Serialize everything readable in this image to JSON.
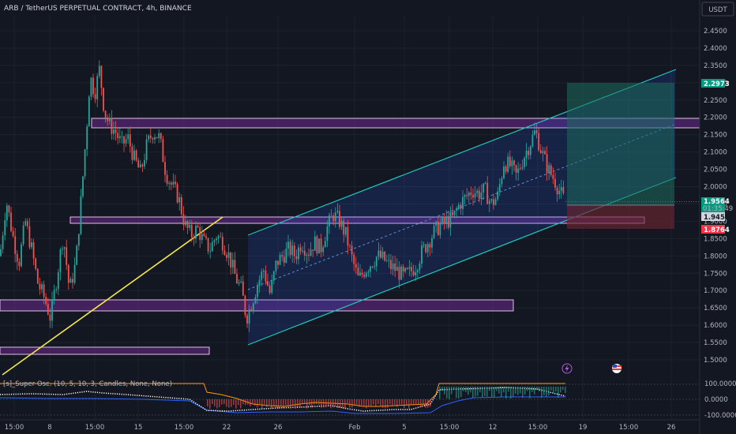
{
  "header": {
    "title": "ARB / TetherUS PERPETUAL CONTRACT, 4h, BINANCE",
    "currency": "USDT"
  },
  "price_axis": {
    "ticks": [
      "2.4500",
      "2.4000",
      "2.3500",
      "2.3000",
      "2.2500",
      "2.2000",
      "2.1500",
      "2.1000",
      "2.0500",
      "2.0000",
      "1.9500",
      "1.9000",
      "1.8500",
      "1.8000",
      "1.7500",
      "1.7000",
      "1.6500",
      "1.6000",
      "1.5500",
      "1.5000"
    ],
    "target_price": "2.2973",
    "last_price": "1.9564",
    "countdown": "01:35:49",
    "entry_price": "1.9453",
    "stop_price": "1.8764"
  },
  "time_axis": {
    "ticks": [
      "15:00",
      "8",
      "15:00",
      "15",
      "15:00",
      "22",
      "26",
      "Feb",
      "5",
      "15:00",
      "12",
      "15:00",
      "19",
      "15:00",
      "26"
    ]
  },
  "oscillator": {
    "label": "[s]_Super Osc. (10, 5, 10, 3, Candles, None, None)",
    "ticks": [
      "100.0000",
      "0.0000",
      "-100.0000"
    ]
  },
  "events": {
    "lightning_icon": "lightning-icon",
    "flag_icon": "us-flag-icon"
  },
  "colors": {
    "background": "#131722",
    "up": "#26a69a",
    "down": "#ef5350",
    "zone_fill": "#6a2a8c",
    "zone_border": "#e1bee7",
    "channel": "#22c7b8",
    "trendline": "#f5e94a",
    "target_fill": "#1e6b5c",
    "stop_fill": "#6b2530"
  },
  "chart_data": {
    "type": "candlestick",
    "symbol": "ARB / TetherUS PERPETUAL CONTRACT",
    "interval": "4h",
    "exchange": "BINANCE",
    "ylim": [
      1.47,
      2.48
    ],
    "close_path": [
      [
        0,
        1.8
      ],
      [
        8,
        1.96
      ],
      [
        16,
        1.86
      ],
      [
        24,
        1.78
      ],
      [
        32,
        1.9
      ],
      [
        40,
        1.82
      ],
      [
        48,
        1.72
      ],
      [
        56,
        1.68
      ],
      [
        64,
        1.62
      ],
      [
        72,
        1.74
      ],
      [
        80,
        1.86
      ],
      [
        88,
        1.7
      ],
      [
        96,
        1.78
      ],
      [
        104,
        2.0
      ],
      [
        110,
        2.18
      ],
      [
        114,
        2.32
      ],
      [
        120,
        2.27
      ],
      [
        126,
        2.34
      ],
      [
        132,
        2.22
      ],
      [
        138,
        2.18
      ],
      [
        146,
        2.16
      ],
      [
        154,
        2.12
      ],
      [
        162,
        2.14
      ],
      [
        170,
        2.08
      ],
      [
        178,
        2.04
      ],
      [
        186,
        2.12
      ],
      [
        194,
        2.16
      ],
      [
        202,
        2.14
      ],
      [
        210,
        2.04
      ],
      [
        218,
        2.0
      ],
      [
        226,
        1.97
      ],
      [
        234,
        1.89
      ],
      [
        242,
        1.86
      ],
      [
        250,
        1.88
      ],
      [
        258,
        1.84
      ],
      [
        266,
        1.82
      ],
      [
        274,
        1.86
      ],
      [
        282,
        1.84
      ],
      [
        290,
        1.8
      ],
      [
        298,
        1.74
      ],
      [
        306,
        1.7
      ],
      [
        312,
        1.62
      ],
      [
        318,
        1.66
      ],
      [
        326,
        1.72
      ],
      [
        334,
        1.76
      ],
      [
        342,
        1.69
      ],
      [
        350,
        1.78
      ],
      [
        358,
        1.8
      ],
      [
        366,
        1.82
      ],
      [
        374,
        1.8
      ],
      [
        382,
        1.84
      ],
      [
        390,
        1.81
      ],
      [
        398,
        1.84
      ],
      [
        406,
        1.82
      ],
      [
        414,
        1.88
      ],
      [
        422,
        1.92
      ],
      [
        430,
        1.9
      ],
      [
        438,
        1.86
      ],
      [
        446,
        1.79
      ],
      [
        454,
        1.73
      ],
      [
        462,
        1.76
      ],
      [
        470,
        1.78
      ],
      [
        478,
        1.8
      ],
      [
        486,
        1.79
      ],
      [
        494,
        1.77
      ],
      [
        502,
        1.76
      ],
      [
        510,
        1.74
      ],
      [
        518,
        1.75
      ],
      [
        526,
        1.77
      ],
      [
        534,
        1.81
      ],
      [
        542,
        1.84
      ],
      [
        550,
        1.87
      ],
      [
        558,
        1.89
      ],
      [
        566,
        1.9
      ],
      [
        574,
        1.91
      ],
      [
        582,
        1.95
      ],
      [
        590,
        1.97
      ],
      [
        598,
        1.99
      ],
      [
        606,
        1.98
      ],
      [
        614,
        1.99
      ],
      [
        622,
        1.95
      ],
      [
        630,
        1.97
      ],
      [
        638,
        2.07
      ],
      [
        646,
        2.06
      ],
      [
        654,
        2.03
      ],
      [
        662,
        2.08
      ],
      [
        670,
        2.12
      ],
      [
        678,
        2.16
      ],
      [
        686,
        2.1
      ],
      [
        694,
        2.05
      ],
      [
        702,
        2.02
      ],
      [
        710,
        1.98
      ],
      [
        716,
        1.956
      ]
    ],
    "zones": [
      {
        "from": 2.199,
        "to": 2.17
      },
      {
        "from": 1.88,
        "to": 1.86
      },
      {
        "from": 1.67,
        "to": 1.638
      },
      {
        "from": 1.54,
        "to": 1.519
      }
    ],
    "position": {
      "target": 2.2973,
      "entry": 1.9453,
      "stop": 1.8764,
      "last": 1.9564
    }
  }
}
